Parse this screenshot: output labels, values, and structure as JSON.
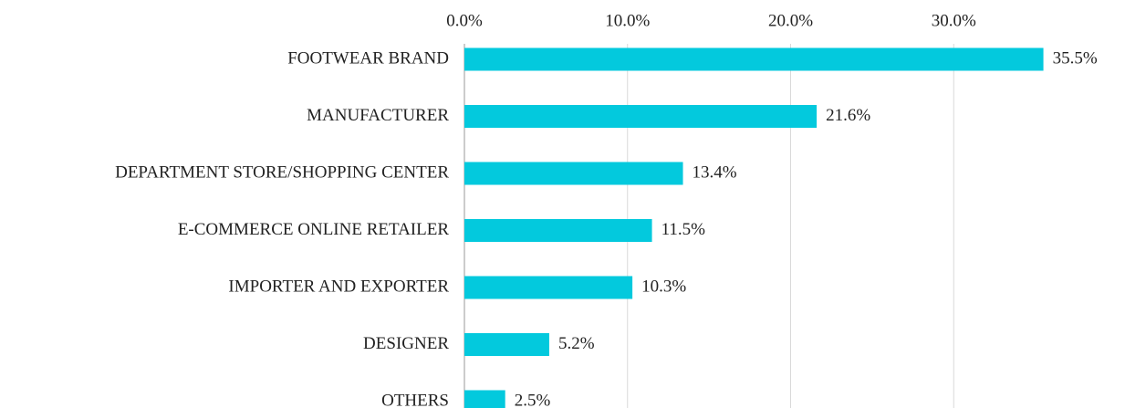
{
  "chart_data": {
    "type": "bar",
    "orientation": "horizontal",
    "categories": [
      "FOOTWEAR BRAND",
      "MANUFACTURER",
      "DEPARTMENT STORE/SHOPPING CENTER",
      "E-COMMERCE ONLINE RETAILER",
      "IMPORTER AND EXPORTER",
      "DESIGNER",
      "OTHERS"
    ],
    "values": [
      35.5,
      21.6,
      13.4,
      11.5,
      10.3,
      5.2,
      2.5
    ],
    "value_labels": [
      "35.5%",
      "21.6%",
      "13.4%",
      "11.5%",
      "10.3%",
      "5.2%",
      "2.5%"
    ],
    "color": "#03c9dd",
    "xlim": [
      0,
      40
    ],
    "xticks": [
      {
        "value": 0,
        "label": "0.0%"
      },
      {
        "value": 10,
        "label": "10.0%"
      },
      {
        "value": 20,
        "label": "20.0%"
      },
      {
        "value": 30,
        "label": "30.0%"
      }
    ],
    "grid": true
  }
}
